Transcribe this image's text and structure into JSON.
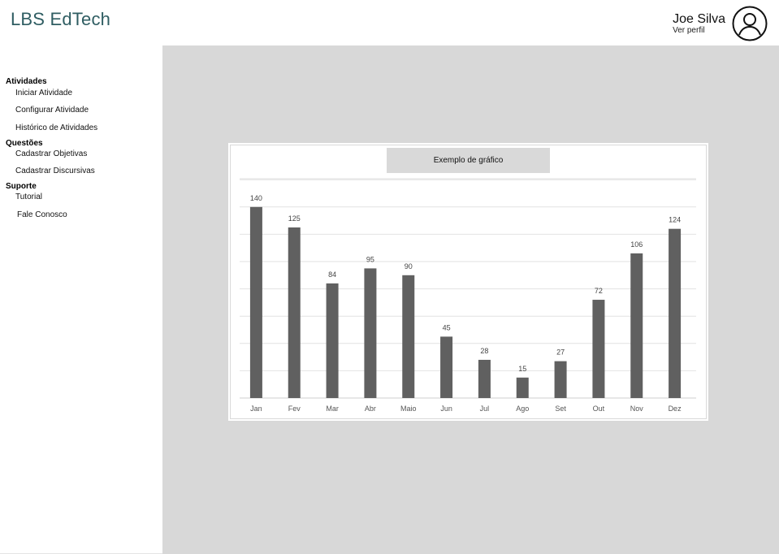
{
  "app": {
    "brand": "LBS EdTech"
  },
  "user": {
    "name": "Joe Silva",
    "profile_link": "Ver perfil"
  },
  "sidebar": {
    "sections": [
      {
        "title": "Atividades",
        "items": [
          "Iniciar Atividade",
          "Configurar Atividade",
          "Histórico de Atividades"
        ]
      },
      {
        "title": "Questões",
        "items": [
          "Cadastrar Objetivas",
          "Cadastrar Discursivas"
        ]
      },
      {
        "title": "Suporte",
        "items": [
          "Tutorial",
          "Fale Conosco"
        ]
      }
    ]
  },
  "colors": {
    "brand": "#2f5d62",
    "content_bg": "#d8d8d8",
    "bar": "#606060",
    "title_box": "#d9d9d9"
  },
  "chart_data": {
    "type": "bar",
    "title": "Exemplo de gráfico",
    "categories": [
      "Jan",
      "Fev",
      "Mar",
      "Abr",
      "Maio",
      "Jun",
      "Jul",
      "Ago",
      "Set",
      "Out",
      "Nov",
      "Dez"
    ],
    "values": [
      140,
      125,
      84,
      95,
      90,
      45,
      28,
      15,
      27,
      72,
      106,
      124
    ],
    "ylim": [
      0,
      160
    ],
    "grid": true,
    "data_labels": true,
    "y_tick_labels": false
  }
}
